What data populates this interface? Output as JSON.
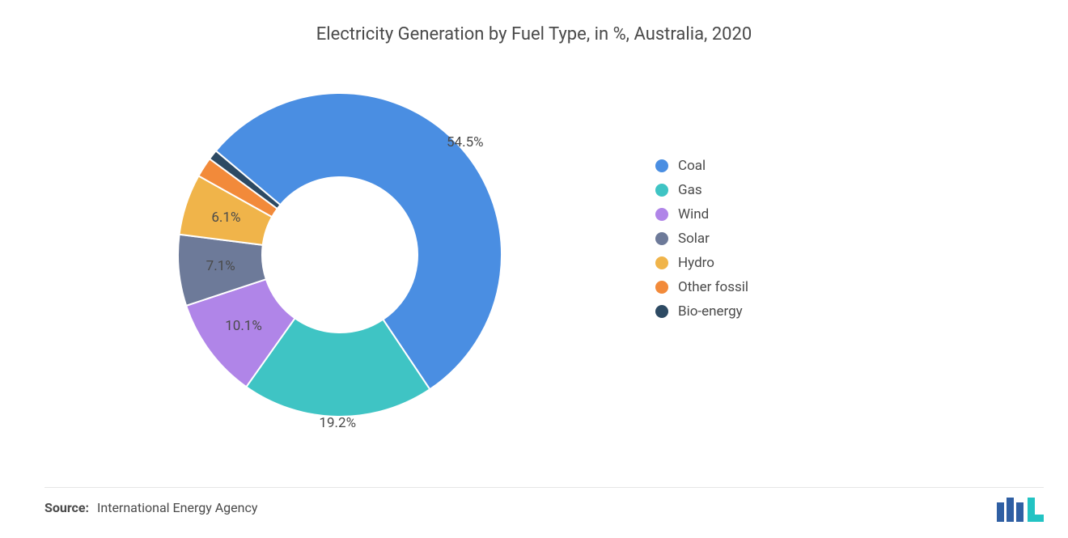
{
  "title": "Electricity Generation by Fuel Type, in %, Australia, 2020",
  "chart": {
    "type": "donut",
    "inner_radius_ratio": 0.48,
    "start_angle_deg": -50,
    "background_color": "#ffffff",
    "title_fontsize": 22,
    "title_color": "#4a4a4a",
    "label_fontsize": 17,
    "label_color": "#4a4a4a",
    "slices": [
      {
        "label": "Coal",
        "value": 54.5,
        "color": "#4a8ee2",
        "show_pct": true
      },
      {
        "label": "Gas",
        "value": 19.2,
        "color": "#3fc4c4",
        "show_pct": true
      },
      {
        "label": "Wind",
        "value": 10.1,
        "color": "#b085e8",
        "show_pct": true
      },
      {
        "label": "Solar",
        "value": 7.1,
        "color": "#6d7a99",
        "show_pct": true
      },
      {
        "label": "Hydro",
        "value": 6.1,
        "color": "#f0b44a",
        "show_pct": true
      },
      {
        "label": "Other fossil",
        "value": 2.0,
        "color": "#f28a3a",
        "show_pct": false
      },
      {
        "label": "Bio-energy",
        "value": 1.0,
        "color": "#2d4a63",
        "show_pct": false
      }
    ]
  },
  "legend": {
    "position": "right",
    "fontsize": 17,
    "color": "#4a4a4a",
    "swatch_shape": "circle",
    "swatch_size": 16
  },
  "source": {
    "label": "Source:",
    "text": "International Energy Agency",
    "fontsize": 16,
    "color": "#4a4a4a"
  },
  "logo": {
    "bar_color": "#2f5fa3",
    "accent_color": "#22c3c3"
  }
}
